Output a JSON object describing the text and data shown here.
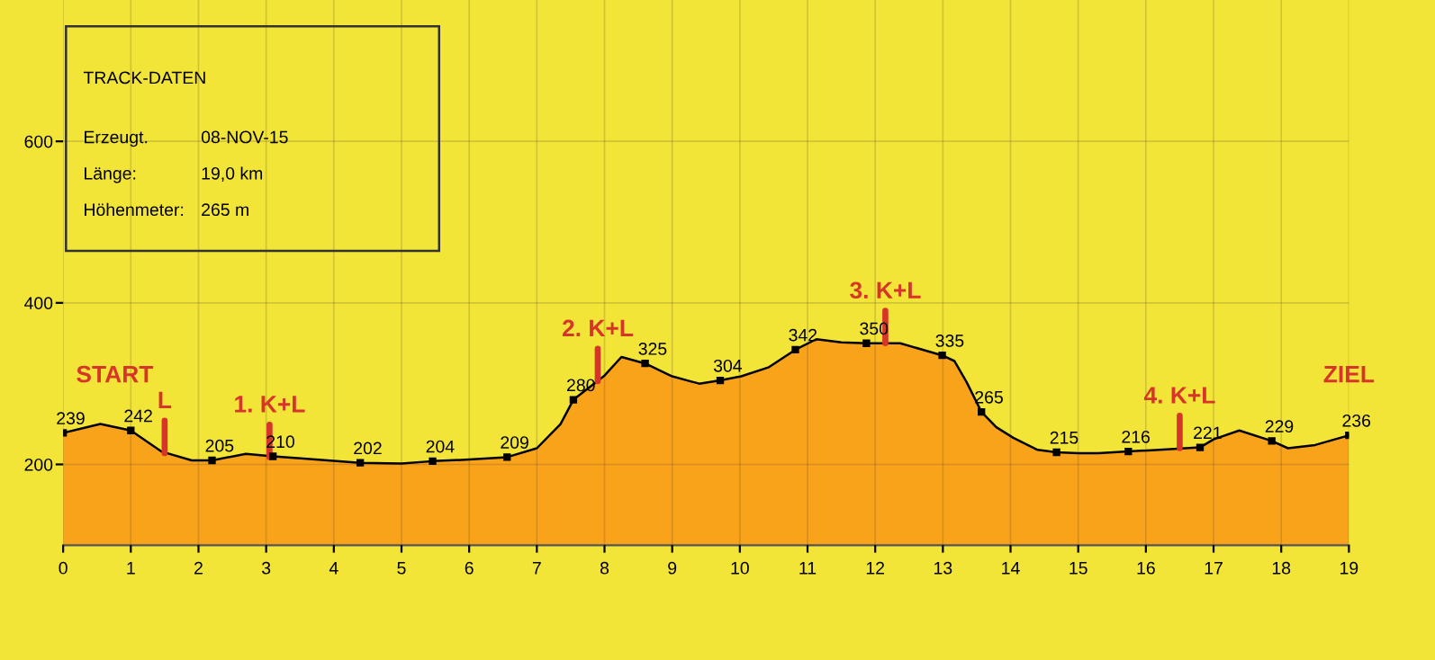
{
  "chart_data": {
    "type": "area",
    "x": [
      0,
      0.55,
      1,
      1.45,
      1.9,
      2.2,
      2.7,
      3.1,
      3.6,
      4.39,
      5.0,
      5.46,
      6.0,
      6.56,
      7.0,
      7.35,
      7.54,
      8.0,
      8.25,
      8.6,
      9.0,
      9.4,
      9.71,
      10.02,
      10.42,
      10.82,
      11.13,
      11.5,
      11.87,
      12.37,
      12.99,
      13.17,
      13.35,
      13.57,
      13.79,
      14.04,
      14.4,
      14.68,
      15.0,
      15.3,
      15.74,
      16.2,
      16.8,
      17.0,
      17.38,
      17.86,
      18.1,
      18.5,
      19
    ],
    "series": [
      {
        "color": "#f9a31b",
        "values": [
          239,
          250,
          242,
          216,
          205,
          205,
          213,
          210,
          207,
          202,
          201,
          204,
          206,
          209,
          220,
          250,
          280,
          310,
          333,
          325,
          309,
          300,
          304,
          309,
          320,
          342,
          355,
          351,
          350,
          350,
          335,
          328,
          302,
          265,
          246,
          233,
          218,
          215,
          214,
          214,
          216,
          218,
          221,
          231,
          242,
          229,
          220,
          224,
          236
        ],
        "value_labels": [
          "239",
          null,
          "242",
          null,
          null,
          "205",
          null,
          "210",
          null,
          "202",
          null,
          "204",
          null,
          "209",
          null,
          null,
          "280",
          null,
          null,
          "325",
          null,
          null,
          "304",
          null,
          null,
          "342",
          null,
          null,
          "350",
          null,
          "335",
          null,
          null,
          "265",
          null,
          null,
          null,
          "215",
          null,
          null,
          "216",
          null,
          "221",
          null,
          null,
          "229",
          null,
          null,
          "236"
        ]
      }
    ],
    "xlim": [
      0,
      19
    ],
    "xticks": [
      0,
      1,
      2,
      3,
      4,
      5,
      6,
      7,
      8,
      9,
      10,
      11,
      12,
      13,
      14,
      15,
      16,
      17,
      18,
      19
    ],
    "ylim": [
      100,
      775
    ],
    "yticks": [
      200,
      400,
      600
    ],
    "grid": true,
    "annotations": [
      "START",
      "ZIEL",
      "TRACK-DATEN",
      "Erzeugt.",
      "08-NOV-15",
      "Länge:",
      "19,0 km",
      "Höhenmeter:",
      "265 m",
      {
        "text": "L",
        "x": 1.5,
        "y": 214
      },
      {
        "text": "1. K+L",
        "x": 3.05,
        "y": 209
      },
      {
        "text": "2. K+L",
        "x": 7.9,
        "y": 303
      },
      {
        "text": "3. K+L",
        "x": 12.15,
        "y": 350
      },
      {
        "text": "4. K+L",
        "x": 16.5,
        "y": 220
      }
    ]
  }
}
